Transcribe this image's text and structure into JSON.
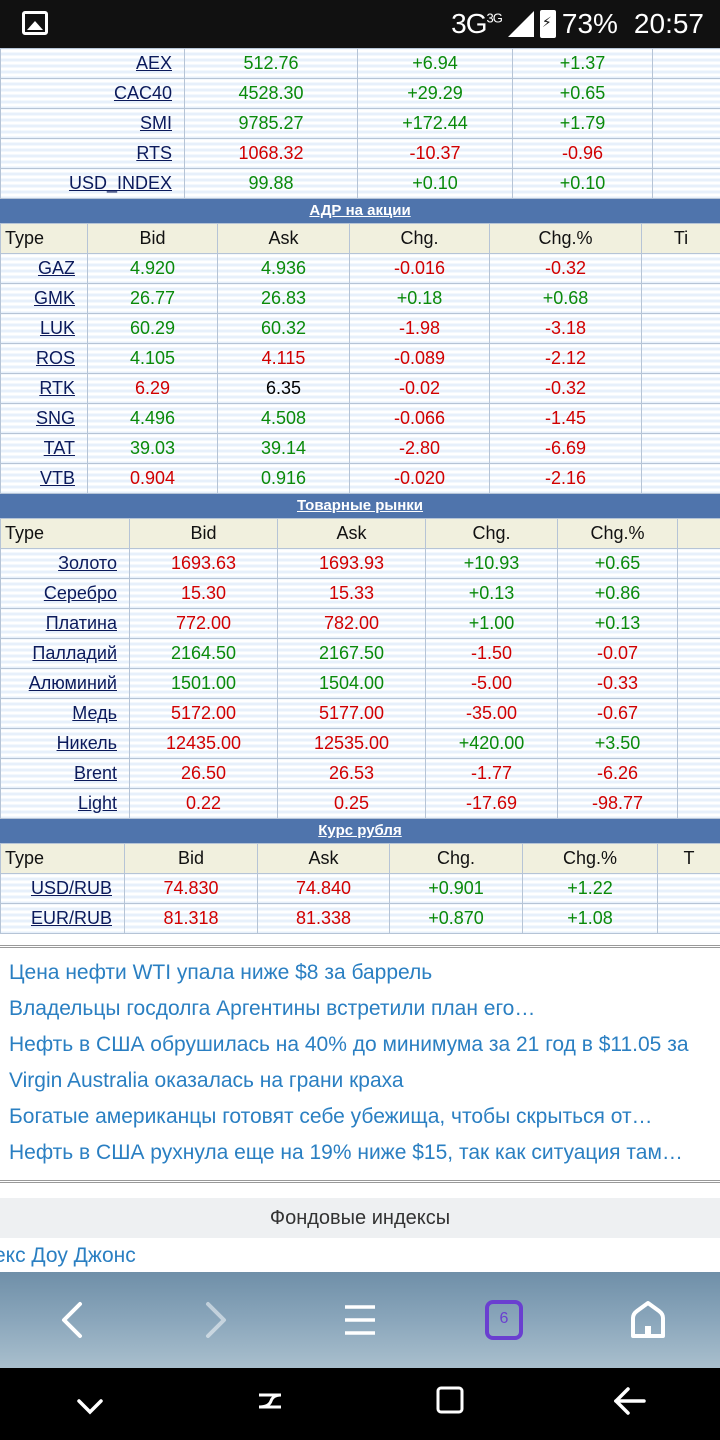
{
  "status": {
    "network": "3G",
    "network_sup": "3G",
    "battery": "73%",
    "time": "20:57"
  },
  "indices": [
    {
      "name": "AEX",
      "v1": "512.76",
      "v2": "+6.94",
      "v3": "+1.37",
      "c1": "up",
      "c2": "up",
      "c3": "up"
    },
    {
      "name": "CAC40",
      "v1": "4528.30",
      "v2": "+29.29",
      "v3": "+0.65",
      "c1": "up",
      "c2": "up",
      "c3": "up"
    },
    {
      "name": "SMI",
      "v1": "9785.27",
      "v2": "+172.44",
      "v3": "+1.79",
      "c1": "up",
      "c2": "up",
      "c3": "up"
    },
    {
      "name": "RTS",
      "v1": "1068.32",
      "v2": "-10.37",
      "v3": "-0.96",
      "c1": "down",
      "c2": "down",
      "c3": "down"
    },
    {
      "name": "USD_INDEX",
      "v1": "99.88",
      "v2": "+0.10",
      "v3": "+0.10",
      "c1": "up",
      "c2": "up",
      "c3": "up"
    }
  ],
  "adr": {
    "title": "АДР на акции",
    "headers": [
      "Type",
      "Bid",
      "Ask",
      "Chg.",
      "Chg.%",
      "Ti"
    ],
    "rows": [
      {
        "name": "GAZ",
        "bid": "4.920",
        "ask": "4.936",
        "chg": "-0.016",
        "pct": "-0.32",
        "cb": "up",
        "ca": "up",
        "cc": "down"
      },
      {
        "name": "GMK",
        "bid": "26.77",
        "ask": "26.83",
        "chg": "+0.18",
        "pct": "+0.68",
        "cb": "up",
        "ca": "up",
        "cc": "up"
      },
      {
        "name": "LUK",
        "bid": "60.29",
        "ask": "60.32",
        "chg": "-1.98",
        "pct": "-3.18",
        "cb": "up",
        "ca": "up",
        "cc": "down"
      },
      {
        "name": "ROS",
        "bid": "4.105",
        "ask": "4.115",
        "chg": "-0.089",
        "pct": "-2.12",
        "cb": "up",
        "ca": "down",
        "cc": "down"
      },
      {
        "name": "RTK",
        "bid": "6.29",
        "ask": "6.35",
        "chg": "-0.02",
        "pct": "-0.32",
        "cb": "down",
        "ca": "neu",
        "cc": "down"
      },
      {
        "name": "SNG",
        "bid": "4.496",
        "ask": "4.508",
        "chg": "-0.066",
        "pct": "-1.45",
        "cb": "up",
        "ca": "up",
        "cc": "down"
      },
      {
        "name": "TAT",
        "bid": "39.03",
        "ask": "39.14",
        "chg": "-2.80",
        "pct": "-6.69",
        "cb": "up",
        "ca": "up",
        "cc": "down"
      },
      {
        "name": "VTB",
        "bid": "0.904",
        "ask": "0.916",
        "chg": "-0.020",
        "pct": "-2.16",
        "cb": "down",
        "ca": "up",
        "cc": "down"
      }
    ]
  },
  "commodities": {
    "title": "Товарные рынки",
    "headers": [
      "Type",
      "Bid",
      "Ask",
      "Chg.",
      "Chg.%",
      ""
    ],
    "rows": [
      {
        "name": "Золото",
        "bid": "1693.63",
        "ask": "1693.93",
        "chg": "+10.93",
        "pct": "+0.65",
        "cb": "down",
        "ca": "down",
        "cc": "up"
      },
      {
        "name": "Серебро",
        "bid": "15.30",
        "ask": "15.33",
        "chg": "+0.13",
        "pct": "+0.86",
        "cb": "down",
        "ca": "down",
        "cc": "up"
      },
      {
        "name": "Платина",
        "bid": "772.00",
        "ask": "782.00",
        "chg": "+1.00",
        "pct": "+0.13",
        "cb": "down",
        "ca": "down",
        "cc": "up"
      },
      {
        "name": "Палладий",
        "bid": "2164.50",
        "ask": "2167.50",
        "chg": "-1.50",
        "pct": "-0.07",
        "cb": "up",
        "ca": "up",
        "cc": "down"
      },
      {
        "name": "Алюминий",
        "bid": "1501.00",
        "ask": "1504.00",
        "chg": "-5.00",
        "pct": "-0.33",
        "cb": "up",
        "ca": "up",
        "cc": "down"
      },
      {
        "name": "Медь",
        "bid": "5172.00",
        "ask": "5177.00",
        "chg": "-35.00",
        "pct": "-0.67",
        "cb": "down",
        "ca": "down",
        "cc": "down"
      },
      {
        "name": "Никель",
        "bid": "12435.00",
        "ask": "12535.00",
        "chg": "+420.00",
        "pct": "+3.50",
        "cb": "down",
        "ca": "down",
        "cc": "up"
      },
      {
        "name": "Brent",
        "bid": "26.50",
        "ask": "26.53",
        "chg": "-1.77",
        "pct": "-6.26",
        "cb": "down",
        "ca": "down",
        "cc": "down"
      },
      {
        "name": "Light",
        "bid": "0.22",
        "ask": "0.25",
        "chg": "-17.69",
        "pct": "-98.77",
        "cb": "down",
        "ca": "down",
        "cc": "down"
      }
    ]
  },
  "ruble": {
    "title": "Курс рубля",
    "headers": [
      "Type",
      "Bid",
      "Ask",
      "Chg.",
      "Chg.%",
      "T"
    ],
    "rows": [
      {
        "name": "USD/RUB",
        "bid": "74.830",
        "ask": "74.840",
        "chg": "+0.901",
        "pct": "+1.22",
        "cb": "down",
        "ca": "down",
        "cc": "up"
      },
      {
        "name": "EUR/RUB",
        "bid": "81.318",
        "ask": "81.338",
        "chg": "+0.870",
        "pct": "+1.08",
        "cb": "down",
        "ca": "down",
        "cc": "up"
      }
    ]
  },
  "news": [
    "Цена нефти WTI упала ниже $8 за баррель",
    "Владельцы госдолга Аргентины встретили план его…",
    "Нефть в США обрушилась на 40% до минимума за 21 год в $11.05 за",
    "Virgin Australia оказалась на грани краха",
    "Богатые американцы готовят себе убежища, чтобы скрыться от…",
    "Нефть в США рухнула еще на 19% ниже $15, так как ситуация там…"
  ],
  "index_section": {
    "title": "Фондовые индексы",
    "link": "екс Доу Джонс"
  },
  "browser": {
    "tabs_count": "6"
  },
  "icons": {
    "back": "chevron-left-icon",
    "forward": "chevron-right-icon",
    "menu": "hamburger-icon",
    "tabs": "tabs-icon",
    "home": "home-icon"
  },
  "colors": {
    "up": "#0a8a0a",
    "down": "#d10000",
    "section": "#4f74ac",
    "news": "#2a7fc2"
  }
}
